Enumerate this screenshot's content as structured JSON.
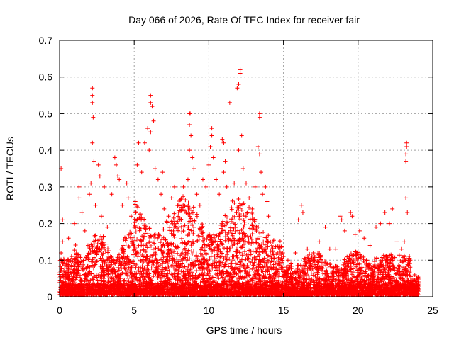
{
  "chart_data": {
    "type": "scatter",
    "title": "Day 066 of 2026, Rate Of TEC Index for receiver fair",
    "xlabel": "GPS time / hours",
    "ylabel": "ROTI / TECUs",
    "xlim": [
      0,
      25
    ],
    "ylim": [
      0,
      0.7
    ],
    "xticks": [
      0,
      5,
      10,
      15,
      20,
      25
    ],
    "xtick_labels": [
      "0",
      "5",
      "10",
      "15",
      "20",
      "25"
    ],
    "yticks": [
      0,
      0.1,
      0.2,
      0.3,
      0.4,
      0.5,
      0.6,
      0.7
    ],
    "ytick_labels": [
      "0",
      "0.1",
      "0.2",
      "0.3",
      "0.4",
      "0.5",
      "0.6",
      "0.7"
    ],
    "grid": true,
    "marker": "plus",
    "color": "#ff0000",
    "series": [
      {
        "name": "ROTI",
        "points": [
          [
            0.1,
            0.35
          ],
          [
            0.2,
            0.21
          ],
          [
            0.2,
            0.15
          ],
          [
            0.1,
            0.12
          ],
          [
            0.3,
            0.1
          ],
          [
            0.4,
            0.06
          ],
          [
            0.6,
            0.16
          ],
          [
            0.8,
            0.11
          ],
          [
            1.0,
            0.2
          ],
          [
            1.3,
            0.3
          ],
          [
            1.3,
            0.27
          ],
          [
            1.5,
            0.23
          ],
          [
            1.7,
            0.18
          ],
          [
            1.9,
            0.14
          ],
          [
            2.2,
            0.57
          ],
          [
            2.2,
            0.55
          ],
          [
            2.2,
            0.53
          ],
          [
            2.25,
            0.49
          ],
          [
            2.2,
            0.42
          ],
          [
            2.3,
            0.37
          ],
          [
            2.1,
            0.31
          ],
          [
            2.0,
            0.28
          ],
          [
            2.4,
            0.25
          ],
          [
            2.6,
            0.36
          ],
          [
            2.7,
            0.33
          ],
          [
            2.8,
            0.22
          ],
          [
            3.0,
            0.3
          ],
          [
            3.2,
            0.19
          ],
          [
            3.5,
            0.28
          ],
          [
            3.7,
            0.38
          ],
          [
            3.8,
            0.36
          ],
          [
            3.9,
            0.33
          ],
          [
            4.0,
            0.32
          ],
          [
            4.2,
            0.25
          ],
          [
            4.5,
            0.31
          ],
          [
            4.6,
            0.27
          ],
          [
            4.8,
            0.22
          ],
          [
            5.0,
            0.19
          ],
          [
            5.2,
            0.36
          ],
          [
            5.3,
            0.42
          ],
          [
            5.5,
            0.34
          ],
          [
            5.7,
            0.42
          ],
          [
            5.9,
            0.46
          ],
          [
            6.1,
            0.55
          ],
          [
            6.1,
            0.53
          ],
          [
            6.2,
            0.52
          ],
          [
            6.3,
            0.48
          ],
          [
            6.1,
            0.45
          ],
          [
            6.0,
            0.4
          ],
          [
            6.4,
            0.35
          ],
          [
            6.6,
            0.32
          ],
          [
            6.8,
            0.28
          ],
          [
            6.9,
            0.34
          ],
          [
            7.0,
            0.24
          ],
          [
            7.3,
            0.22
          ],
          [
            7.5,
            0.27
          ],
          [
            7.7,
            0.3
          ],
          [
            8.0,
            0.19
          ],
          [
            8.3,
            0.3
          ],
          [
            8.6,
            0.32
          ],
          [
            8.7,
            0.5
          ],
          [
            8.75,
            0.5
          ],
          [
            8.7,
            0.47
          ],
          [
            8.8,
            0.44
          ],
          [
            8.7,
            0.4
          ],
          [
            8.9,
            0.38
          ],
          [
            9.0,
            0.35
          ],
          [
            9.2,
            0.28
          ],
          [
            9.4,
            0.25
          ],
          [
            9.6,
            0.32
          ],
          [
            9.8,
            0.3
          ],
          [
            10.2,
            0.46
          ],
          [
            10.2,
            0.44
          ],
          [
            10.1,
            0.41
          ],
          [
            10.3,
            0.38
          ],
          [
            10.0,
            0.36
          ],
          [
            10.5,
            0.32
          ],
          [
            10.7,
            0.28
          ],
          [
            10.9,
            0.43
          ],
          [
            11.0,
            0.42
          ],
          [
            11.1,
            0.37
          ],
          [
            11.0,
            0.34
          ],
          [
            11.2,
            0.3
          ],
          [
            11.4,
            0.53
          ],
          [
            11.7,
            0.31
          ],
          [
            11.9,
            0.57
          ],
          [
            12.0,
            0.58
          ],
          [
            12.1,
            0.62
          ],
          [
            12.1,
            0.61
          ],
          [
            12.0,
            0.4
          ],
          [
            12.2,
            0.44
          ],
          [
            12.3,
            0.35
          ],
          [
            12.5,
            0.31
          ],
          [
            12.7,
            0.27
          ],
          [
            12.9,
            0.24
          ],
          [
            13.1,
            0.3
          ],
          [
            13.4,
            0.5
          ],
          [
            13.4,
            0.49
          ],
          [
            13.3,
            0.41
          ],
          [
            13.4,
            0.39
          ],
          [
            13.5,
            0.34
          ],
          [
            13.6,
            0.28
          ],
          [
            13.8,
            0.3
          ],
          [
            13.9,
            0.26
          ],
          [
            14.0,
            0.22
          ],
          [
            14.3,
            0.15
          ],
          [
            14.6,
            0.12
          ],
          [
            15.0,
            0.11
          ],
          [
            15.3,
            0.1
          ],
          [
            15.5,
            0.09
          ],
          [
            15.8,
            0.12
          ],
          [
            16.0,
            0.21
          ],
          [
            16.2,
            0.25
          ],
          [
            16.3,
            0.23
          ],
          [
            16.6,
            0.13
          ],
          [
            17.0,
            0.12
          ],
          [
            17.4,
            0.15
          ],
          [
            17.8,
            0.19
          ],
          [
            18.1,
            0.13
          ],
          [
            18.5,
            0.13
          ],
          [
            18.8,
            0.22
          ],
          [
            18.9,
            0.21
          ],
          [
            19.1,
            0.18
          ],
          [
            19.5,
            0.23
          ],
          [
            19.6,
            0.22
          ],
          [
            19.8,
            0.17
          ],
          [
            20.1,
            0.18
          ],
          [
            20.4,
            0.16
          ],
          [
            20.8,
            0.14
          ],
          [
            21.2,
            0.19
          ],
          [
            21.5,
            0.2
          ],
          [
            21.8,
            0.23
          ],
          [
            22.1,
            0.2
          ],
          [
            22.3,
            0.24
          ],
          [
            22.6,
            0.15
          ],
          [
            22.9,
            0.13
          ],
          [
            23.1,
            0.15
          ],
          [
            23.25,
            0.42
          ],
          [
            23.25,
            0.41
          ],
          [
            23.2,
            0.39
          ],
          [
            23.2,
            0.37
          ],
          [
            23.2,
            0.27
          ],
          [
            23.3,
            0.23
          ],
          [
            23.5,
            0.1
          ],
          [
            23.8,
            0.06
          ],
          [
            24.0,
            0.03
          ]
        ]
      }
    ]
  }
}
